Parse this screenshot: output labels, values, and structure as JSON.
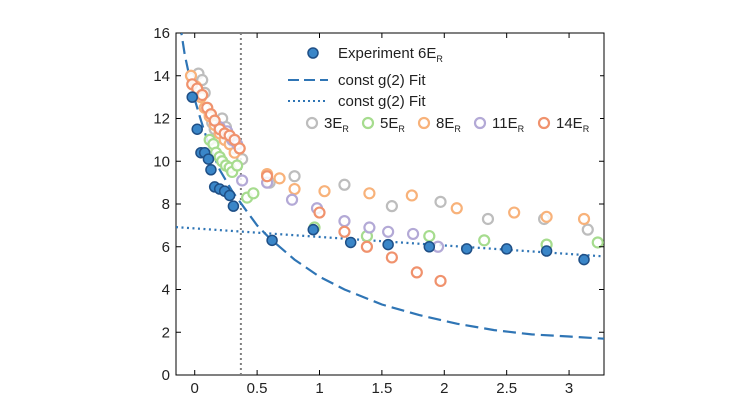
{
  "chart_data": {
    "type": "scatter",
    "title": "",
    "xlabel": "",
    "ylabel": "",
    "xlim": [
      -0.15,
      3.28
    ],
    "ylim": [
      0,
      16
    ],
    "xticks": [
      0,
      0.5,
      1,
      1.5,
      2,
      2.5,
      3
    ],
    "xtick_labels": [
      "0",
      "0.5",
      "1",
      "1.5",
      "2",
      "2.5",
      "3"
    ],
    "yticks": [
      0,
      2,
      4,
      6,
      8,
      10,
      12,
      14,
      16
    ],
    "ytick_labels": [
      "0",
      "2",
      "4",
      "6",
      "8",
      "10",
      "12",
      "14",
      "16"
    ],
    "vertical_reference_line": {
      "x": 0.37,
      "style": "dotted",
      "color": "#7f7f7f"
    },
    "series": [
      {
        "name": "3E_R",
        "label_main": "3E",
        "label_sub": "R",
        "marker": "open-circle",
        "color": "#bdbdbd",
        "points": [
          [
            -0.02,
            13.9
          ],
          [
            0.03,
            14.1
          ],
          [
            0.06,
            13.8
          ],
          [
            0.08,
            13.2
          ],
          [
            0.1,
            12.5
          ],
          [
            0.12,
            12.2
          ],
          [
            0.14,
            11.8
          ],
          [
            0.16,
            11.5
          ],
          [
            0.18,
            11.1
          ],
          [
            0.2,
            11.4
          ],
          [
            0.22,
            12.0
          ],
          [
            0.25,
            11.6
          ],
          [
            0.28,
            11.0
          ],
          [
            0.32,
            10.6
          ],
          [
            0.38,
            10.1
          ],
          [
            0.6,
            9.0
          ],
          [
            0.8,
            9.3
          ],
          [
            1.2,
            8.9
          ],
          [
            1.58,
            7.9
          ],
          [
            1.97,
            8.1
          ],
          [
            2.35,
            7.3
          ],
          [
            2.8,
            7.3
          ],
          [
            3.15,
            6.8
          ]
        ]
      },
      {
        "name": "5E_R",
        "label_main": "5E",
        "label_sub": "R",
        "marker": "open-circle",
        "color": "#a6dc8e",
        "points": [
          [
            0.12,
            11.0
          ],
          [
            0.15,
            10.8
          ],
          [
            0.17,
            10.4
          ],
          [
            0.2,
            10.2
          ],
          [
            0.22,
            10.0
          ],
          [
            0.25,
            9.8
          ],
          [
            0.28,
            9.7
          ],
          [
            0.3,
            9.5
          ],
          [
            0.34,
            9.8
          ],
          [
            0.42,
            8.3
          ],
          [
            0.47,
            8.5
          ],
          [
            0.96,
            6.9
          ],
          [
            1.38,
            6.5
          ],
          [
            1.88,
            6.5
          ],
          [
            2.32,
            6.3
          ],
          [
            2.82,
            6.1
          ],
          [
            3.23,
            6.2
          ]
        ]
      },
      {
        "name": "8E_R",
        "label_main": "8E",
        "label_sub": "R",
        "marker": "open-circle",
        "color": "#f8b27a",
        "points": [
          [
            -0.03,
            14.0
          ],
          [
            0.01,
            13.5
          ],
          [
            0.05,
            13.0
          ],
          [
            0.08,
            12.5
          ],
          [
            0.12,
            12.1
          ],
          [
            0.16,
            11.7
          ],
          [
            0.2,
            11.3
          ],
          [
            0.24,
            11.0
          ],
          [
            0.28,
            10.8
          ],
          [
            0.32,
            10.4
          ],
          [
            0.36,
            10.6
          ],
          [
            0.58,
            9.4
          ],
          [
            0.68,
            9.2
          ],
          [
            0.8,
            8.7
          ],
          [
            1.04,
            8.6
          ],
          [
            1.4,
            8.5
          ],
          [
            1.74,
            8.4
          ],
          [
            2.1,
            7.8
          ],
          [
            2.56,
            7.6
          ],
          [
            2.82,
            7.4
          ],
          [
            3.12,
            7.3
          ]
        ]
      },
      {
        "name": "11E_R",
        "label_main": "11E",
        "label_sub": "R",
        "marker": "open-circle",
        "color": "#b3a9d6",
        "points": [
          [
            0.2,
            11.6
          ],
          [
            0.26,
            11.4
          ],
          [
            0.3,
            11.0
          ],
          [
            0.34,
            10.8
          ],
          [
            0.38,
            9.1
          ],
          [
            0.58,
            9.0
          ],
          [
            0.78,
            8.2
          ],
          [
            0.98,
            7.8
          ],
          [
            1.2,
            7.2
          ],
          [
            1.4,
            6.9
          ],
          [
            1.55,
            6.7
          ],
          [
            1.75,
            6.6
          ],
          [
            1.95,
            6.0
          ]
        ]
      },
      {
        "name": "14E_R",
        "label_main": "14E",
        "label_sub": "R",
        "marker": "open-circle",
        "color": "#f0926d",
        "points": [
          [
            -0.02,
            13.6
          ],
          [
            0.02,
            13.4
          ],
          [
            0.06,
            13.1
          ],
          [
            0.1,
            12.5
          ],
          [
            0.13,
            12.2
          ],
          [
            0.16,
            11.9
          ],
          [
            0.2,
            11.5
          ],
          [
            0.24,
            11.3
          ],
          [
            0.28,
            11.2
          ],
          [
            0.32,
            11.0
          ],
          [
            0.36,
            10.6
          ],
          [
            0.58,
            9.3
          ],
          [
            1.0,
            7.6
          ],
          [
            1.2,
            6.7
          ],
          [
            1.38,
            6.0
          ],
          [
            1.58,
            5.5
          ],
          [
            1.78,
            4.8
          ],
          [
            1.97,
            4.4
          ]
        ]
      },
      {
        "name": "Experiment 6E_R",
        "label_main": "Experiment 6E",
        "label_sub": "R",
        "marker": "filled-circle",
        "color": "#3a86c8",
        "edge": "#1f4f86",
        "points": [
          [
            -0.02,
            13.0
          ],
          [
            0.02,
            11.5
          ],
          [
            0.05,
            10.4
          ],
          [
            0.08,
            10.4
          ],
          [
            0.11,
            10.1
          ],
          [
            0.13,
            9.6
          ],
          [
            0.16,
            8.8
          ],
          [
            0.2,
            8.7
          ],
          [
            0.24,
            8.6
          ],
          [
            0.28,
            8.4
          ],
          [
            0.31,
            7.9
          ],
          [
            0.62,
            6.3
          ],
          [
            0.95,
            6.8
          ],
          [
            1.25,
            6.2
          ],
          [
            1.55,
            6.1
          ],
          [
            1.88,
            6.0
          ],
          [
            2.18,
            5.9
          ],
          [
            2.5,
            5.9
          ],
          [
            2.82,
            5.8
          ],
          [
            3.12,
            5.4
          ]
        ]
      }
    ],
    "fits": [
      {
        "name": "const g(2) Fit (dashed)",
        "label": "const g(2) Fit",
        "style": "dashed",
        "color": "#2f75b5",
        "x": [
          -0.12,
          -0.08,
          -0.04,
          0.0,
          0.05,
          0.1,
          0.15,
          0.2,
          0.3,
          0.4,
          0.5,
          0.6,
          0.8,
          1.0,
          1.2,
          1.5,
          1.8,
          2.1,
          2.4,
          2.7,
          3.0,
          3.28
        ],
        "y": [
          16.5,
          15.0,
          13.9,
          12.9,
          11.9,
          11.0,
          10.3,
          9.6,
          8.6,
          7.8,
          7.0,
          6.4,
          5.4,
          4.6,
          4.0,
          3.3,
          2.8,
          2.4,
          2.1,
          1.9,
          1.8,
          1.7
        ]
      },
      {
        "name": "const g(2) Fit (dotted)",
        "label": "const g(2) Fit",
        "style": "dotted",
        "color": "#2f75b5",
        "x": [
          -0.15,
          3.28
        ],
        "y": [
          6.92,
          5.55
        ]
      }
    ],
    "legend": {
      "position": "top-right",
      "items": [
        {
          "main": "Experiment 6E",
          "sub": "R",
          "kind": "filled-circle",
          "color": "#3a86c8"
        },
        {
          "main": "const g(2) Fit",
          "sub": "",
          "kind": "dashed-line",
          "color": "#2f75b5"
        },
        {
          "main": "const g(2) Fit",
          "sub": "",
          "kind": "dotted-line",
          "color": "#2f75b5"
        }
      ],
      "row_items": [
        {
          "main": "3E",
          "sub": "R",
          "color": "#bdbdbd"
        },
        {
          "main": "5E",
          "sub": "R",
          "color": "#a6dc8e"
        },
        {
          "main": "8E",
          "sub": "R",
          "color": "#f8b27a"
        },
        {
          "main": "11E",
          "sub": "R",
          "color": "#b3a9d6"
        },
        {
          "main": "14E",
          "sub": "R",
          "color": "#f0926d"
        }
      ]
    }
  }
}
